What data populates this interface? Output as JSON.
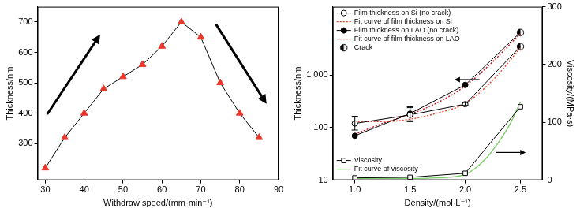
{
  "chart_data": [
    {
      "type": "line",
      "x_label": "Withdraw speed/(mm·min⁻¹)",
      "y_label": "Thickness/nm",
      "x": [
        30,
        35,
        40,
        45,
        50,
        55,
        60,
        65,
        70,
        75,
        80,
        85
      ],
      "values": [
        220,
        320,
        400,
        480,
        520,
        560,
        620,
        700,
        650,
        500,
        400,
        320
      ],
      "color": "#e8382d",
      "marker": "triangle",
      "line_style": "solid",
      "xlim": [
        28,
        90
      ],
      "xticks": [
        30,
        40,
        50,
        60,
        70,
        80,
        90
      ],
      "ylim": [
        180,
        750
      ],
      "yticks": [
        300,
        400,
        500,
        600,
        700
      ],
      "grid": false
    },
    {
      "type": "line",
      "x_label": "Density/(mol·L⁻¹)",
      "y_label": "Thickness/nm",
      "y2_label": "Viscosity/(MPa·s)",
      "log": "y",
      "xlim": [
        0.8,
        2.7
      ],
      "xticks": [
        {
          "value": 1,
          "label": "1.0"
        },
        {
          "value": 1.5,
          "label": "1.5"
        },
        {
          "value": 2,
          "label": "2.0"
        },
        {
          "value": 2.5,
          "label": "2.5"
        }
      ],
      "ylim": [
        10,
        20000
      ],
      "yticks": [
        10,
        100,
        {
          "value": 1000,
          "label": "1 000"
        }
      ],
      "y2lim": [
        0,
        300
      ],
      "y2ticks": [
        0,
        100,
        200,
        300
      ],
      "grid": false,
      "legend": "upper left",
      "series": [
        {
          "name": "Film thickness on Si (no crack)",
          "color": "#000000",
          "marker": "open circle",
          "line_style": "solid",
          "x": [
            1,
            1.5,
            2,
            2.5
          ],
          "values": [
            120,
            175,
            280,
            3500
          ],
          "errors": [
            [
              90,
              165
            ],
            [
              135,
              250
            ],
            [
              265,
              300
            ],
            null
          ]
        },
        {
          "name": "Fit curve of film thickness on Si",
          "color": "#e8402a",
          "line_style": "dotted",
          "x": [
            1,
            1.25,
            1.5,
            1.75,
            2,
            2.25,
            2.5
          ],
          "values": [
            130,
            130,
            145,
            190,
            290,
            800,
            3300
          ]
        },
        {
          "name": "Film thickness on LAO (no crack)",
          "color": "#000000",
          "marker": "filled circle",
          "line_style": "solid",
          "x": [
            1,
            1.5,
            2,
            2.5
          ],
          "values": [
            70,
            185,
            650,
            6500
          ],
          "errors": [
            null,
            [
              130,
              240
            ],
            null,
            null
          ]
        },
        {
          "name": "Fit curve of film thickness on LAO",
          "color": "#c0141c",
          "line_style": "dotted",
          "x": [
            1,
            1.25,
            1.5,
            1.75,
            2,
            2.25,
            2.5
          ],
          "values": [
            75,
            120,
            180,
            300,
            620,
            1800,
            6200
          ]
        },
        {
          "name": "Crack",
          "type": "scatter",
          "color": "#000000",
          "marker": "half-filled circle",
          "x": [
            2.5,
            2.5
          ],
          "values": [
            3500,
            6500
          ]
        },
        {
          "name": "Viscosity",
          "axis": "y2",
          "color": "#000000",
          "marker": "open square",
          "line_style": "solid",
          "x": [
            1,
            1.5,
            2,
            2.5
          ],
          "values": [
            4,
            5,
            12,
            127
          ]
        },
        {
          "name": "Fit curve of viscosity",
          "axis": "y2",
          "color": "#7ccc6c",
          "line_style": "solid",
          "x": [
            1,
            1.25,
            1.5,
            1.75,
            2,
            2.1,
            2.2,
            2.3,
            2.4,
            2.5
          ],
          "values": [
            3,
            3,
            3,
            4,
            10,
            22,
            40,
            65,
            95,
            135
          ]
        }
      ]
    }
  ]
}
